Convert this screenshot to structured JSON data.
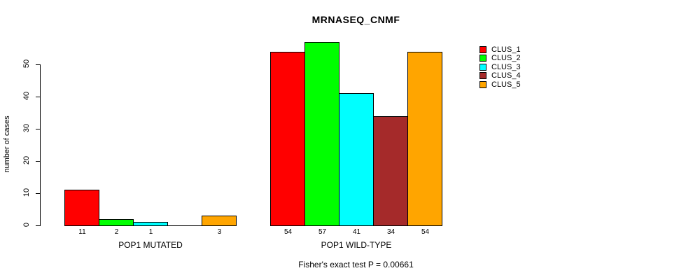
{
  "chart_data": {
    "type": "bar",
    "title": "MRNASEQ_CNMF",
    "ylabel": "number of cases",
    "xlabel": "",
    "categories": [
      "POP1 MUTATED",
      "POP1 WILD-TYPE"
    ],
    "series": [
      {
        "name": "CLUS_1",
        "color": "#FF0000",
        "values": [
          11,
          54
        ]
      },
      {
        "name": "CLUS_2",
        "color": "#00FF00",
        "values": [
          2,
          57
        ]
      },
      {
        "name": "CLUS_3",
        "color": "#00FFFF",
        "values": [
          1,
          41
        ]
      },
      {
        "name": "CLUS_4",
        "color": "#A52A2A",
        "values": [
          0,
          34
        ]
      },
      {
        "name": "CLUS_5",
        "color": "#FFA500",
        "values": [
          3,
          54
        ]
      }
    ],
    "bar_value_labels": [
      [
        "11",
        "2",
        "1",
        "",
        "3"
      ],
      [
        "54",
        "57",
        "41",
        "34",
        "54"
      ]
    ],
    "yticks": [
      "0",
      "10",
      "20",
      "30",
      "40",
      "50"
    ],
    "ylim": [
      0,
      57.5
    ],
    "grid": false,
    "legend_position": "right",
    "annotation": "Fisher's exact test P = 0.00661"
  },
  "colors": {
    "axis": "#000000",
    "background": "#FFFFFF"
  }
}
